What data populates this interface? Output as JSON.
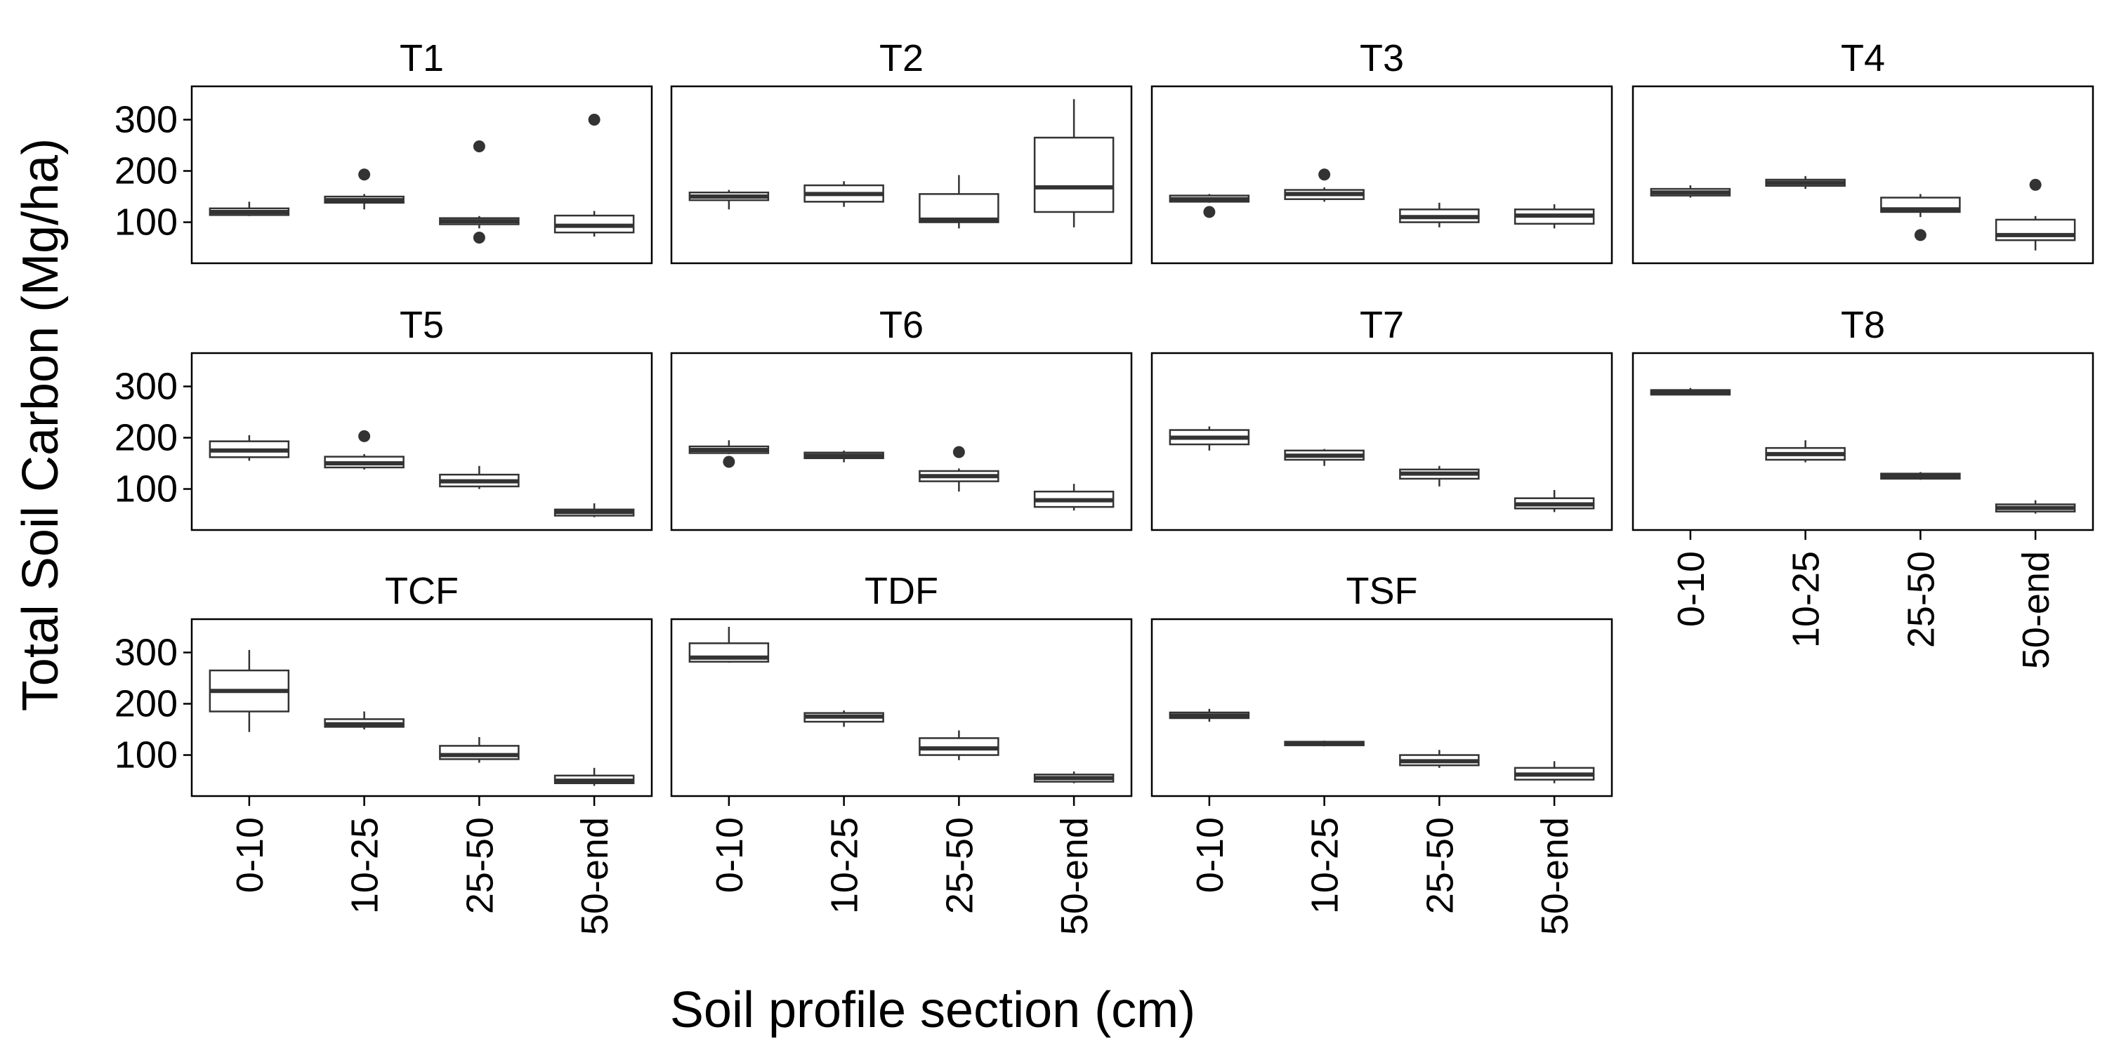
{
  "chart_data": {
    "type": "box",
    "xlabel": "Soil profile section (cm)",
    "ylabel": "Total Soil Carbon (Mg/ha)",
    "categories": [
      "0-10",
      "10-25",
      "25-50",
      "50-end"
    ],
    "yticks": [
      100,
      200,
      300
    ],
    "ylim": [
      20,
      365
    ],
    "panels": [
      {
        "name": "T1",
        "boxes": [
          {
            "min": 112,
            "q1": 114,
            "median": 120,
            "q3": 127,
            "max": 140,
            "outliers": []
          },
          {
            "min": 125,
            "q1": 138,
            "median": 143,
            "q3": 150,
            "max": 155,
            "outliers": [
              193
            ]
          },
          {
            "min": 88,
            "q1": 96,
            "median": 102,
            "q3": 108,
            "max": 112,
            "outliers": [
              248,
              70
            ]
          },
          {
            "min": 72,
            "q1": 80,
            "median": 93,
            "q3": 113,
            "max": 122,
            "outliers": [
              300
            ]
          }
        ]
      },
      {
        "name": "T2",
        "boxes": [
          {
            "min": 125,
            "q1": 143,
            "median": 150,
            "q3": 158,
            "max": 163,
            "outliers": []
          },
          {
            "min": 130,
            "q1": 140,
            "median": 155,
            "q3": 172,
            "max": 180,
            "outliers": []
          },
          {
            "min": 88,
            "q1": 100,
            "median": 105,
            "q3": 155,
            "max": 192,
            "outliers": []
          },
          {
            "min": 90,
            "q1": 120,
            "median": 168,
            "q3": 265,
            "max": 340,
            "outliers": []
          }
        ]
      },
      {
        "name": "T3",
        "boxes": [
          {
            "min": 138,
            "q1": 140,
            "median": 145,
            "q3": 152,
            "max": 155,
            "outliers": [
              120
            ]
          },
          {
            "min": 140,
            "q1": 145,
            "median": 155,
            "q3": 163,
            "max": 168,
            "outliers": [
              193
            ]
          },
          {
            "min": 90,
            "q1": 100,
            "median": 110,
            "q3": 125,
            "max": 138,
            "outliers": []
          },
          {
            "min": 88,
            "q1": 97,
            "median": 113,
            "q3": 125,
            "max": 135,
            "outliers": []
          }
        ]
      },
      {
        "name": "T4",
        "boxes": [
          {
            "min": 148,
            "q1": 152,
            "median": 158,
            "q3": 165,
            "max": 172,
            "outliers": []
          },
          {
            "min": 165,
            "q1": 171,
            "median": 177,
            "q3": 183,
            "max": 190,
            "outliers": []
          },
          {
            "min": 110,
            "q1": 120,
            "median": 125,
            "q3": 148,
            "max": 155,
            "outliers": [
              75
            ]
          },
          {
            "min": 45,
            "q1": 65,
            "median": 75,
            "q3": 105,
            "max": 112,
            "outliers": [
              173
            ]
          }
        ]
      },
      {
        "name": "T5",
        "boxes": [
          {
            "min": 155,
            "q1": 162,
            "median": 175,
            "q3": 193,
            "max": 205,
            "outliers": []
          },
          {
            "min": 138,
            "q1": 142,
            "median": 150,
            "q3": 163,
            "max": 168,
            "outliers": [
              203
            ]
          },
          {
            "min": 100,
            "q1": 105,
            "median": 115,
            "q3": 128,
            "max": 145,
            "outliers": []
          },
          {
            "min": 45,
            "q1": 48,
            "median": 55,
            "q3": 60,
            "max": 72,
            "outliers": []
          }
        ]
      },
      {
        "name": "T6",
        "boxes": [
          {
            "min": 168,
            "q1": 170,
            "median": 176,
            "q3": 183,
            "max": 195,
            "outliers": [
              153
            ]
          },
          {
            "min": 152,
            "q1": 160,
            "median": 165,
            "q3": 171,
            "max": 175,
            "outliers": []
          },
          {
            "min": 95,
            "q1": 115,
            "median": 125,
            "q3": 135,
            "max": 140,
            "outliers": [
              172
            ]
          },
          {
            "min": 58,
            "q1": 65,
            "median": 78,
            "q3": 95,
            "max": 110,
            "outliers": []
          }
        ]
      },
      {
        "name": "T7",
        "boxes": [
          {
            "min": 175,
            "q1": 187,
            "median": 200,
            "q3": 215,
            "max": 222,
            "outliers": []
          },
          {
            "min": 145,
            "q1": 157,
            "median": 165,
            "q3": 175,
            "max": 178,
            "outliers": []
          },
          {
            "min": 105,
            "q1": 120,
            "median": 130,
            "q3": 138,
            "max": 145,
            "outliers": []
          },
          {
            "min": 55,
            "q1": 62,
            "median": 70,
            "q3": 82,
            "max": 98,
            "outliers": []
          }
        ]
      },
      {
        "name": "T8",
        "boxes": [
          {
            "min": 283,
            "q1": 284,
            "median": 288,
            "q3": 293,
            "max": 297,
            "outliers": []
          },
          {
            "min": 152,
            "q1": 157,
            "median": 168,
            "q3": 180,
            "max": 195,
            "outliers": []
          },
          {
            "min": 118,
            "q1": 120,
            "median": 125,
            "q3": 130,
            "max": 133,
            "outliers": []
          },
          {
            "min": 52,
            "q1": 56,
            "median": 63,
            "q3": 70,
            "max": 78,
            "outliers": []
          }
        ]
      },
      {
        "name": "TCF",
        "boxes": [
          {
            "min": 145,
            "q1": 185,
            "median": 225,
            "q3": 265,
            "max": 305,
            "outliers": []
          },
          {
            "min": 150,
            "q1": 155,
            "median": 160,
            "q3": 170,
            "max": 185,
            "outliers": []
          },
          {
            "min": 85,
            "q1": 92,
            "median": 100,
            "q3": 118,
            "max": 135,
            "outliers": []
          },
          {
            "min": 40,
            "q1": 45,
            "median": 50,
            "q3": 60,
            "max": 75,
            "outliers": []
          }
        ]
      },
      {
        "name": "TDF",
        "boxes": [
          {
            "min": 280,
            "q1": 282,
            "median": 290,
            "q3": 318,
            "max": 350,
            "outliers": []
          },
          {
            "min": 155,
            "q1": 165,
            "median": 175,
            "q3": 182,
            "max": 187,
            "outliers": []
          },
          {
            "min": 90,
            "q1": 100,
            "median": 113,
            "q3": 133,
            "max": 148,
            "outliers": []
          },
          {
            "min": 45,
            "q1": 48,
            "median": 55,
            "q3": 62,
            "max": 68,
            "outliers": []
          }
        ]
      },
      {
        "name": "TSF",
        "boxes": [
          {
            "min": 165,
            "q1": 172,
            "median": 177,
            "q3": 183,
            "max": 190,
            "outliers": []
          },
          {
            "min": 117,
            "q1": 119,
            "median": 122,
            "q3": 126,
            "max": 128,
            "outliers": []
          },
          {
            "min": 75,
            "q1": 80,
            "median": 88,
            "q3": 100,
            "max": 110,
            "outliers": []
          },
          {
            "min": 45,
            "q1": 52,
            "median": 62,
            "q3": 75,
            "max": 88,
            "outliers": []
          }
        ]
      }
    ]
  }
}
